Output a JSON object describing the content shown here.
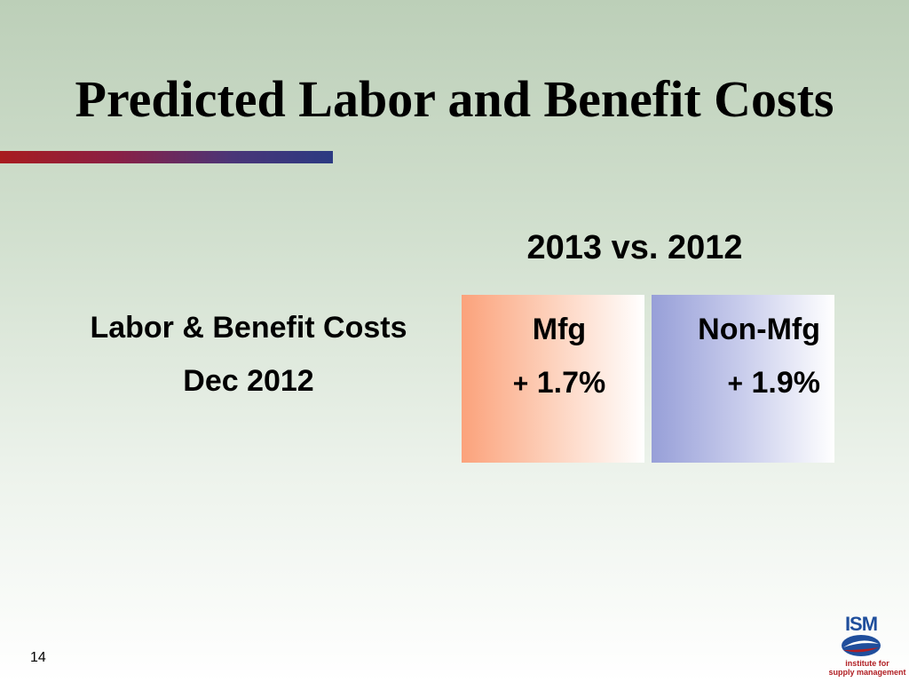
{
  "title": "Predicted Labor and Benefit Costs",
  "comparison_heading": "2013 vs. 2012",
  "row_label_line1": "Labor & Benefit Costs",
  "row_label_line2": "Dec 2012",
  "columns": [
    {
      "header": "Mfg",
      "sign": "+",
      "value": "1.7%"
    },
    {
      "header": "Non-Mfg",
      "sign": "+",
      "value": "1.9%"
    }
  ],
  "page_number": "14",
  "logo": {
    "wordmark": "ISM",
    "line1": "institute for",
    "line2": "supply management"
  },
  "colors": {
    "mfg_accent": "#fba27b",
    "nonmfg_accent": "#979fd8",
    "bar_start": "#a81c1f",
    "bar_end": "#2b3a82"
  }
}
